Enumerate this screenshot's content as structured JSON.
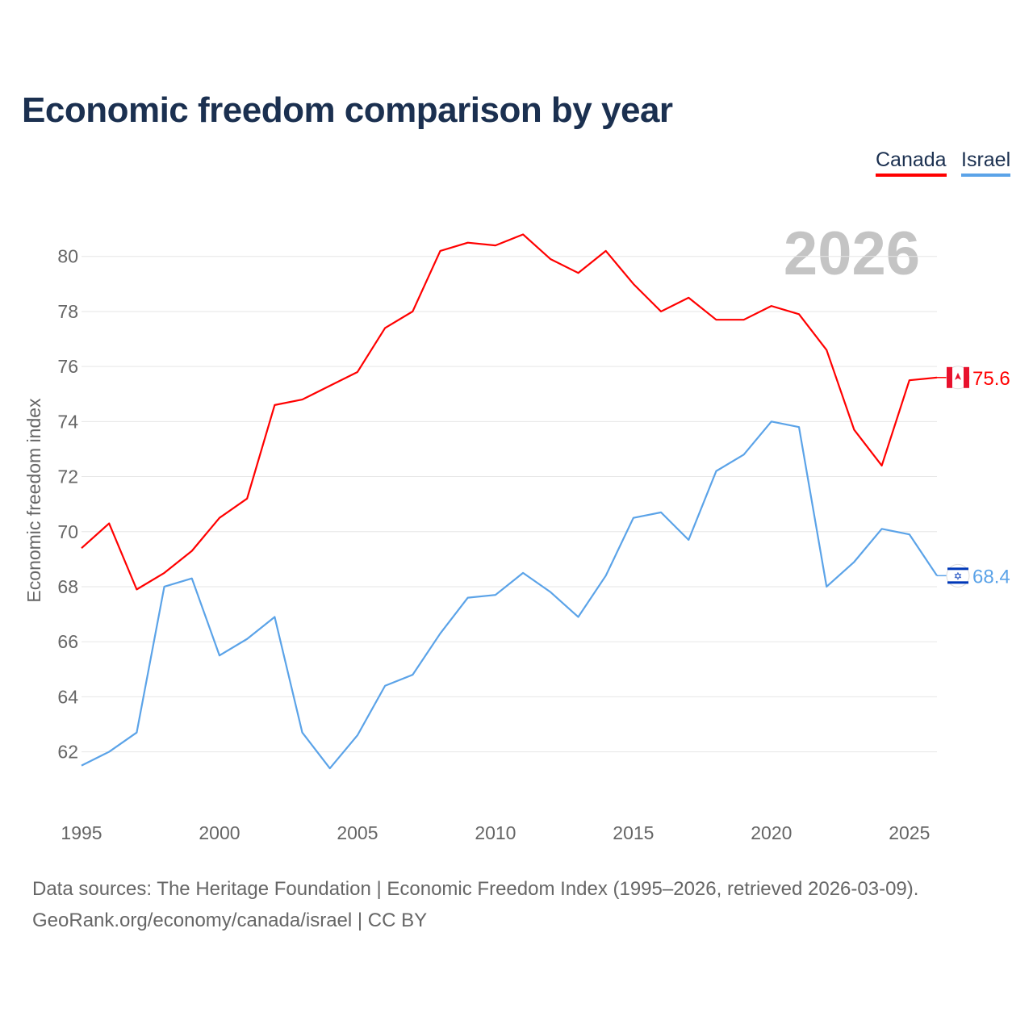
{
  "title": "Economic freedom comparison by year",
  "legend": [
    {
      "label": "Canada",
      "color": "#ff0000"
    },
    {
      "label": "Israel",
      "color": "#5ba3e8"
    }
  ],
  "footer": {
    "line1": "Data sources: The Heritage Foundation | Economic Freedom Index (1995–2026, retrieved 2026-03-09).",
    "line2": "GeoRank.org/economy/canada/israel | CC BY"
  },
  "chart_data": {
    "type": "line",
    "title": "Economic freedom comparison by year",
    "xlabel": "",
    "ylabel": "Economic freedom index",
    "watermark_year": "2026",
    "x": [
      1995,
      1996,
      1997,
      1998,
      1999,
      2000,
      2001,
      2002,
      2003,
      2004,
      2005,
      2006,
      2007,
      2008,
      2009,
      2010,
      2011,
      2012,
      2013,
      2014,
      2015,
      2016,
      2017,
      2018,
      2019,
      2020,
      2021,
      2022,
      2023,
      2024,
      2025,
      2026
    ],
    "xticks": [
      1995,
      2000,
      2005,
      2010,
      2015,
      2020,
      2025
    ],
    "yticks": [
      62,
      64,
      66,
      68,
      70,
      72,
      74,
      76,
      78,
      80
    ],
    "xlim": [
      1995,
      2026
    ],
    "ylim": [
      59.7,
      81.4
    ],
    "grid": true,
    "legend_position": "top-right",
    "series": [
      {
        "name": "Canada",
        "color": "#ff0000",
        "end_label": "75.6",
        "flag": "canada-flag",
        "values": [
          69.4,
          70.3,
          67.9,
          68.5,
          69.3,
          70.5,
          71.2,
          74.6,
          74.8,
          75.3,
          75.8,
          77.4,
          78.0,
          80.2,
          80.5,
          80.4,
          80.8,
          79.9,
          79.4,
          80.2,
          79.0,
          78.0,
          78.5,
          77.7,
          77.7,
          78.2,
          77.9,
          76.6,
          73.7,
          72.4,
          75.5,
          75.6
        ]
      },
      {
        "name": "Israel",
        "color": "#5ba3e8",
        "end_label": "68.4",
        "flag": "israel-flag",
        "values": [
          61.5,
          62.0,
          62.7,
          68.0,
          68.3,
          65.5,
          66.1,
          66.9,
          62.7,
          61.4,
          62.6,
          64.4,
          64.8,
          66.3,
          67.6,
          67.7,
          68.5,
          67.8,
          66.9,
          68.4,
          70.5,
          70.7,
          69.7,
          72.2,
          72.8,
          74.0,
          73.8,
          68.0,
          68.9,
          70.1,
          69.9,
          68.4
        ]
      }
    ]
  }
}
